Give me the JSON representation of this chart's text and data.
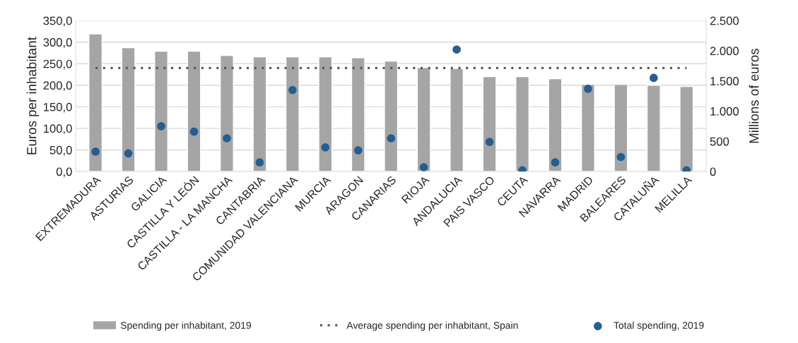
{
  "chart_data": {
    "type": "bar",
    "ylabel": "Euros per inhabitant",
    "y2label": "Millions of euros",
    "categories": [
      "EXTREMADURA",
      "ASTURIAS",
      "GALICIA",
      "CASTILLA Y LEÓN",
      "CASTILLA - LA MANCHA",
      "CANTABRIA",
      "COMUNIDAD VALENCIANA",
      "MURCIA",
      "ARAGON",
      "CANARIAS",
      "RIOJA",
      "ANDALUCIA",
      "PAIS VASCO",
      "CEUTA",
      "NAVARRA",
      "MADRID",
      "BALEARES",
      "CATALUÑA",
      "MELILLA"
    ],
    "series": [
      {
        "name": "Spending per inhabitant, 2019",
        "color": "#a5a5a5",
        "values": [
          319,
          287,
          279,
          279,
          269,
          266,
          266,
          266,
          264,
          256,
          241,
          239,
          220,
          220,
          215,
          202,
          202,
          200,
          197
        ]
      },
      {
        "name": "Total spending, 2019",
        "type": "scatter",
        "axis": "y2",
        "color": "#255e91",
        "values": [
          330,
          300,
          750,
          660,
          550,
          150,
          1350,
          400,
          350,
          550,
          70,
          2020,
          490,
          20,
          150,
          1370,
          240,
          1550,
          20
        ]
      }
    ],
    "ref_lines": [
      {
        "axis": "y",
        "value": 240,
        "label": "Average spending per inhabitant, Spain",
        "color": "#595959",
        "line_style": "dotted"
      }
    ],
    "ylim": [
      0,
      350
    ],
    "yticks": [
      {
        "value": 0,
        "label": "0,0"
      },
      {
        "value": 50,
        "label": "50,0"
      },
      {
        "value": 100,
        "label": "100,0"
      },
      {
        "value": 150,
        "label": "150,0"
      },
      {
        "value": 200,
        "label": "200,0"
      },
      {
        "value": 250,
        "label": "250,0"
      },
      {
        "value": 300,
        "label": "300,0"
      },
      {
        "value": 350,
        "label": "350,0"
      }
    ],
    "y2lim": [
      0,
      2500
    ],
    "y2ticks": [
      0,
      500,
      {
        "value": 1000,
        "label": "1.000"
      },
      {
        "value": 1500,
        "label": "1.500"
      },
      {
        "value": 2000,
        "label": "2.000"
      },
      {
        "value": 2500,
        "label": "2.500"
      }
    ],
    "grid": "y",
    "legend": "bottom",
    "marker": "circle"
  }
}
